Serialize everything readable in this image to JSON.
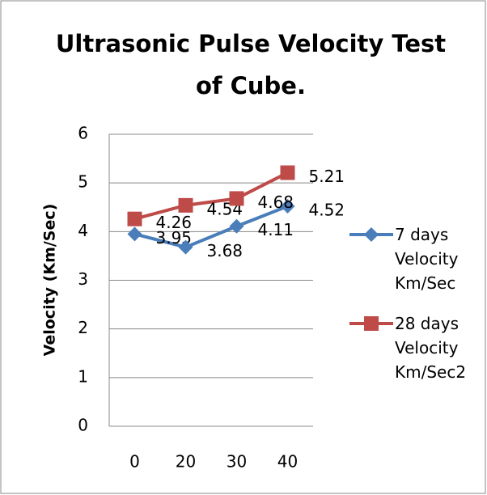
{
  "chart_data": {
    "type": "line",
    "title": "Ultrasonic Pulse Velocity Test of Cube.",
    "y_label": "Velocity (Km/Sec)",
    "categories": [
      "0",
      "20",
      "30",
      "40"
    ],
    "series": [
      {
        "name": "7 days Velocity Km/Sec",
        "color": "#4a7ebb",
        "marker": "diamond",
        "values": [
          3.95,
          3.68,
          4.11,
          4.52
        ]
      },
      {
        "name": "28 days Velocity Km/Sec2",
        "color": "#be4b48",
        "marker": "square",
        "values": [
          4.26,
          4.54,
          4.68,
          5.21
        ]
      }
    ],
    "ylim": [
      0,
      6
    ],
    "yticks": [
      0,
      1,
      2,
      3,
      4,
      5,
      6
    ],
    "grid": true,
    "legend": "right"
  }
}
